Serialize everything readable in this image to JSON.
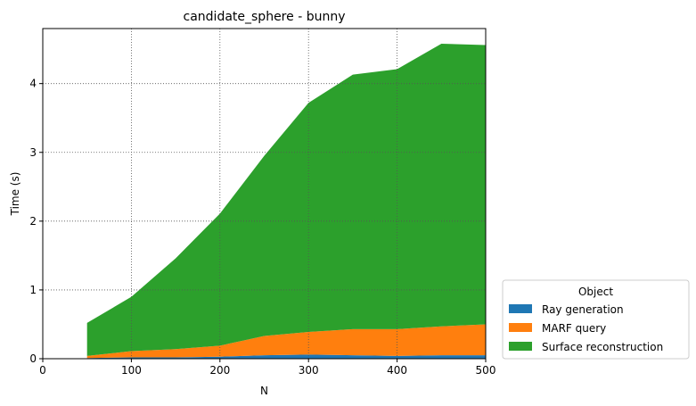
{
  "chart_data": {
    "type": "area",
    "stacked": true,
    "title": "candidate_sphere - bunny",
    "xlabel": "N",
    "ylabel": "Time (s)",
    "xlim": [
      0,
      500
    ],
    "ylim": [
      0,
      4.8
    ],
    "xticks": [
      "0",
      "100",
      "200",
      "300",
      "400",
      "500"
    ],
    "yticks": [
      "0",
      "1",
      "2",
      "3",
      "4"
    ],
    "grid": true,
    "legend": {
      "title": "Object",
      "placement": "outside-lower-right"
    },
    "x": [
      50,
      100,
      150,
      200,
      250,
      300,
      350,
      400,
      450,
      500
    ],
    "series": [
      {
        "name": "Ray generation",
        "color": "#1f77b4",
        "values": [
          0.01,
          0.02,
          0.02,
          0.03,
          0.05,
          0.06,
          0.05,
          0.04,
          0.05,
          0.05
        ]
      },
      {
        "name": "MARF query",
        "color": "#ff7f0e",
        "values": [
          0.03,
          0.09,
          0.12,
          0.16,
          0.28,
          0.33,
          0.38,
          0.39,
          0.42,
          0.45
        ]
      },
      {
        "name": "Surface reconstruction",
        "color": "#2ca02c",
        "values": [
          0.48,
          0.79,
          1.32,
          1.92,
          2.62,
          3.33,
          3.7,
          3.78,
          4.11,
          4.06
        ]
      }
    ]
  }
}
